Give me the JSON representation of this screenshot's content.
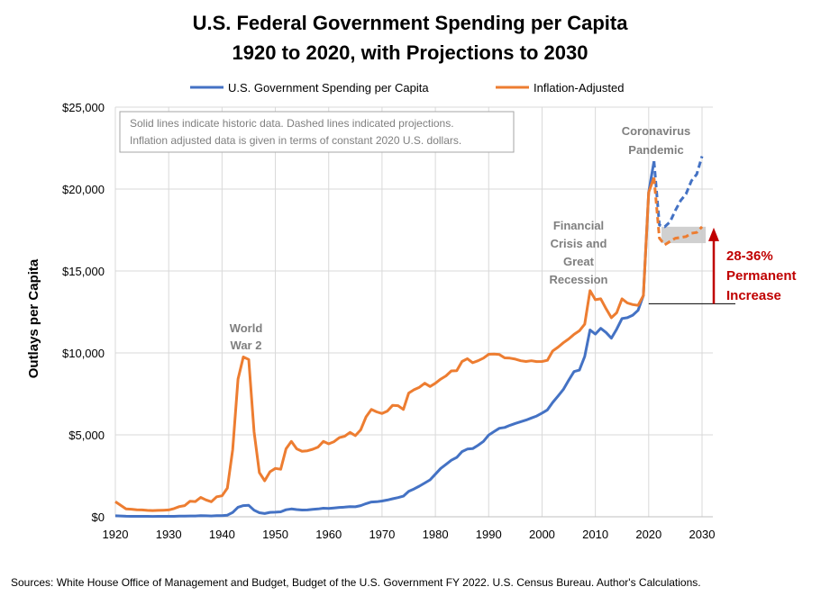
{
  "chart_data": {
    "type": "line",
    "title": "U.S. Federal Government Spending per Capita",
    "subtitle": "1920 to 2020, with Projections to 2030",
    "xlabel": "",
    "ylabel": "Outlays per Capita",
    "xlim": [
      1920,
      2030
    ],
    "ylim": [
      0,
      25000
    ],
    "x_ticks": [
      "1920",
      "1930",
      "1940",
      "1950",
      "1960",
      "1970",
      "1980",
      "1990",
      "2000",
      "2010",
      "2020",
      "2030"
    ],
    "y_ticks": [
      "$0",
      "$5,000",
      "$10,000",
      "$15,000",
      "$20,000",
      "$25,000"
    ],
    "grid": true,
    "legend_position": "top",
    "colors": {
      "nominal": "#4472C4",
      "inflation": "#ED7D31",
      "annotation_red": "#C00000",
      "annotation_gray": "#7F7F7F",
      "grid": "#D9D9D9"
    },
    "series": [
      {
        "name": "U.S. Government Spending per Capita",
        "color": "#4472C4",
        "historic": [
          [
            1920,
            60
          ],
          [
            1921,
            50
          ],
          [
            1922,
            32
          ],
          [
            1923,
            28
          ],
          [
            1924,
            26
          ],
          [
            1925,
            25
          ],
          [
            1926,
            25
          ],
          [
            1927,
            24
          ],
          [
            1928,
            25
          ],
          [
            1929,
            26
          ],
          [
            1930,
            27
          ],
          [
            1931,
            30
          ],
          [
            1932,
            37
          ],
          [
            1933,
            37
          ],
          [
            1934,
            52
          ],
          [
            1935,
            51
          ],
          [
            1936,
            65
          ],
          [
            1937,
            59
          ],
          [
            1938,
            52
          ],
          [
            1939,
            68
          ],
          [
            1940,
            72
          ],
          [
            1941,
            100
          ],
          [
            1942,
            262
          ],
          [
            1943,
            580
          ],
          [
            1944,
            680
          ],
          [
            1945,
            700
          ],
          [
            1946,
            400
          ],
          [
            1947,
            250
          ],
          [
            1948,
            200
          ],
          [
            1949,
            270
          ],
          [
            1950,
            280
          ],
          [
            1951,
            300
          ],
          [
            1952,
            430
          ],
          [
            1953,
            480
          ],
          [
            1954,
            440
          ],
          [
            1955,
            410
          ],
          [
            1956,
            420
          ],
          [
            1957,
            450
          ],
          [
            1958,
            480
          ],
          [
            1959,
            520
          ],
          [
            1960,
            510
          ],
          [
            1961,
            540
          ],
          [
            1962,
            570
          ],
          [
            1963,
            590
          ],
          [
            1964,
            620
          ],
          [
            1965,
            610
          ],
          [
            1966,
            680
          ],
          [
            1967,
            800
          ],
          [
            1968,
            900
          ],
          [
            1969,
            920
          ],
          [
            1970,
            960
          ],
          [
            1971,
            1020
          ],
          [
            1972,
            1100
          ],
          [
            1973,
            1170
          ],
          [
            1974,
            1260
          ],
          [
            1975,
            1550
          ],
          [
            1976,
            1700
          ],
          [
            1977,
            1870
          ],
          [
            1978,
            2060
          ],
          [
            1979,
            2250
          ],
          [
            1980,
            2600
          ],
          [
            1981,
            2950
          ],
          [
            1982,
            3200
          ],
          [
            1983,
            3450
          ],
          [
            1984,
            3620
          ],
          [
            1985,
            3980
          ],
          [
            1986,
            4130
          ],
          [
            1987,
            4160
          ],
          [
            1988,
            4360
          ],
          [
            1989,
            4600
          ],
          [
            1990,
            4990
          ],
          [
            1991,
            5200
          ],
          [
            1992,
            5400
          ],
          [
            1993,
            5450
          ],
          [
            1994,
            5580
          ],
          [
            1995,
            5700
          ],
          [
            1996,
            5800
          ],
          [
            1997,
            5900
          ],
          [
            1998,
            6030
          ],
          [
            1999,
            6150
          ],
          [
            2000,
            6330
          ],
          [
            2001,
            6520
          ],
          [
            2002,
            6980
          ],
          [
            2003,
            7370
          ],
          [
            2004,
            7770
          ],
          [
            2005,
            8330
          ],
          [
            2006,
            8860
          ],
          [
            2007,
            8950
          ],
          [
            2008,
            9780
          ],
          [
            2009,
            11400
          ],
          [
            2010,
            11150
          ],
          [
            2011,
            11500
          ],
          [
            2012,
            11250
          ],
          [
            2013,
            10900
          ],
          [
            2014,
            11450
          ],
          [
            2015,
            12100
          ],
          [
            2016,
            12150
          ],
          [
            2017,
            12300
          ],
          [
            2018,
            12600
          ],
          [
            2019,
            13500
          ],
          [
            2020,
            19800
          ],
          [
            2021,
            21700
          ]
        ],
        "projection": [
          [
            2021,
            21700
          ],
          [
            2022,
            17800
          ],
          [
            2023,
            17700
          ],
          [
            2024,
            18000
          ],
          [
            2025,
            18700
          ],
          [
            2026,
            19300
          ],
          [
            2027,
            19700
          ],
          [
            2028,
            20500
          ],
          [
            2029,
            20900
          ],
          [
            2030,
            22000
          ]
        ]
      },
      {
        "name": "Inflation-Adjusted",
        "color": "#ED7D31",
        "historic": [
          [
            1920,
            920
          ],
          [
            1921,
            700
          ],
          [
            1922,
            480
          ],
          [
            1923,
            460
          ],
          [
            1924,
            430
          ],
          [
            1925,
            420
          ],
          [
            1926,
            390
          ],
          [
            1927,
            380
          ],
          [
            1928,
            390
          ],
          [
            1929,
            400
          ],
          [
            1930,
            420
          ],
          [
            1931,
            500
          ],
          [
            1932,
            620
          ],
          [
            1933,
            680
          ],
          [
            1934,
            950
          ],
          [
            1935,
            930
          ],
          [
            1936,
            1180
          ],
          [
            1937,
            1030
          ],
          [
            1938,
            920
          ],
          [
            1939,
            1220
          ],
          [
            1940,
            1280
          ],
          [
            1941,
            1750
          ],
          [
            1942,
            4100
          ],
          [
            1943,
            8400
          ],
          [
            1944,
            9750
          ],
          [
            1945,
            9600
          ],
          [
            1946,
            5200
          ],
          [
            1947,
            2700
          ],
          [
            1948,
            2200
          ],
          [
            1949,
            2750
          ],
          [
            1950,
            2950
          ],
          [
            1951,
            2900
          ],
          [
            1952,
            4150
          ],
          [
            1953,
            4600
          ],
          [
            1954,
            4150
          ],
          [
            1955,
            4000
          ],
          [
            1956,
            4030
          ],
          [
            1957,
            4120
          ],
          [
            1958,
            4250
          ],
          [
            1959,
            4600
          ],
          [
            1960,
            4450
          ],
          [
            1961,
            4580
          ],
          [
            1962,
            4830
          ],
          [
            1963,
            4920
          ],
          [
            1964,
            5150
          ],
          [
            1965,
            4950
          ],
          [
            1966,
            5300
          ],
          [
            1967,
            6100
          ],
          [
            1968,
            6550
          ],
          [
            1969,
            6400
          ],
          [
            1970,
            6300
          ],
          [
            1971,
            6450
          ],
          [
            1972,
            6800
          ],
          [
            1973,
            6780
          ],
          [
            1974,
            6550
          ],
          [
            1975,
            7550
          ],
          [
            1976,
            7750
          ],
          [
            1977,
            7900
          ],
          [
            1978,
            8150
          ],
          [
            1979,
            7950
          ],
          [
            1980,
            8150
          ],
          [
            1981,
            8400
          ],
          [
            1982,
            8600
          ],
          [
            1983,
            8900
          ],
          [
            1984,
            8920
          ],
          [
            1985,
            9480
          ],
          [
            1986,
            9650
          ],
          [
            1987,
            9400
          ],
          [
            1988,
            9520
          ],
          [
            1989,
            9680
          ],
          [
            1990,
            9920
          ],
          [
            1991,
            9930
          ],
          [
            1992,
            9900
          ],
          [
            1993,
            9700
          ],
          [
            1994,
            9680
          ],
          [
            1995,
            9620
          ],
          [
            1996,
            9520
          ],
          [
            1997,
            9480
          ],
          [
            1998,
            9520
          ],
          [
            1999,
            9470
          ],
          [
            2000,
            9480
          ],
          [
            2001,
            9550
          ],
          [
            2002,
            10120
          ],
          [
            2003,
            10350
          ],
          [
            2004,
            10620
          ],
          [
            2005,
            10850
          ],
          [
            2006,
            11130
          ],
          [
            2007,
            11350
          ],
          [
            2008,
            11750
          ],
          [
            2009,
            13800
          ],
          [
            2010,
            13250
          ],
          [
            2011,
            13300
          ],
          [
            2012,
            12700
          ],
          [
            2013,
            12150
          ],
          [
            2014,
            12450
          ],
          [
            2015,
            13300
          ],
          [
            2016,
            13050
          ],
          [
            2017,
            12950
          ],
          [
            2018,
            12900
          ],
          [
            2019,
            13500
          ],
          [
            2020,
            19800
          ],
          [
            2021,
            20700
          ]
        ],
        "projection": [
          [
            2021,
            20700
          ],
          [
            2022,
            17000
          ],
          [
            2023,
            16600
          ],
          [
            2024,
            16800
          ],
          [
            2025,
            17000
          ],
          [
            2026,
            17050
          ],
          [
            2027,
            17100
          ],
          [
            2028,
            17300
          ],
          [
            2029,
            17350
          ],
          [
            2030,
            17700
          ]
        ]
      }
    ],
    "annotations": {
      "note_line1": "Solid lines indicate historic data. Dashed lines indicated projections.",
      "note_line2": "Inflation adjusted data is given in terms of constant 2020  U.S. dollars.",
      "ww2": [
        "World",
        "War 2"
      ],
      "financial": [
        "Financial",
        "Crisis and",
        "Great",
        "Recession"
      ],
      "coronavirus": [
        "Coronavirus",
        "Pandemic"
      ],
      "increase": [
        "28-36%",
        "Permanent",
        "Increase"
      ],
      "baseline_value": 13000,
      "band_range": [
        16700,
        17700
      ]
    }
  },
  "source": "Sources: White House Office of Management and Budget, Budget of the U.S. Government FY 2022.   U.S. Census Bureau. Author's Calculations."
}
